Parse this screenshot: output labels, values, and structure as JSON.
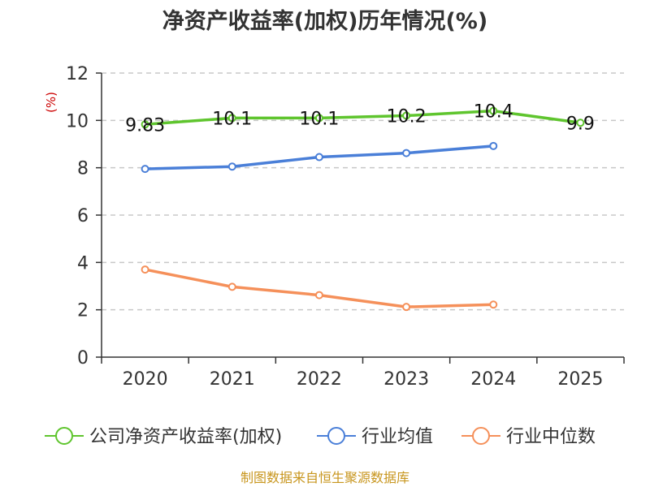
{
  "chart_data": {
    "type": "line",
    "title": "净资产收益率(加权)历年情况(%)",
    "xlabel": "",
    "ylabel": "(%)",
    "categories": [
      "2020",
      "2021",
      "2022",
      "2023",
      "2024",
      "2025"
    ],
    "ylim": [
      0,
      12
    ],
    "yticks": [
      0,
      2,
      4,
      6,
      8,
      10,
      12
    ],
    "grid": "horizontal-dashed",
    "legend_position": "bottom",
    "series": [
      {
        "name": "公司净资产收益率(加权)",
        "color": "#5fc52e",
        "values": [
          9.83,
          10.1,
          10.1,
          10.2,
          10.4,
          9.9
        ],
        "labels": [
          "9.83",
          "10.1",
          "10.1",
          "10.2",
          "10.4",
          "9.9"
        ]
      },
      {
        "name": "行业均值",
        "color": "#4a7fd8",
        "values": [
          7.95,
          8.05,
          8.45,
          8.62,
          8.92,
          null
        ]
      },
      {
        "name": "行业中位数",
        "color": "#f5905a",
        "values": [
          3.7,
          2.97,
          2.62,
          2.12,
          2.22,
          null
        ]
      }
    ]
  },
  "source": "制图数据来自恒生聚源数据库"
}
